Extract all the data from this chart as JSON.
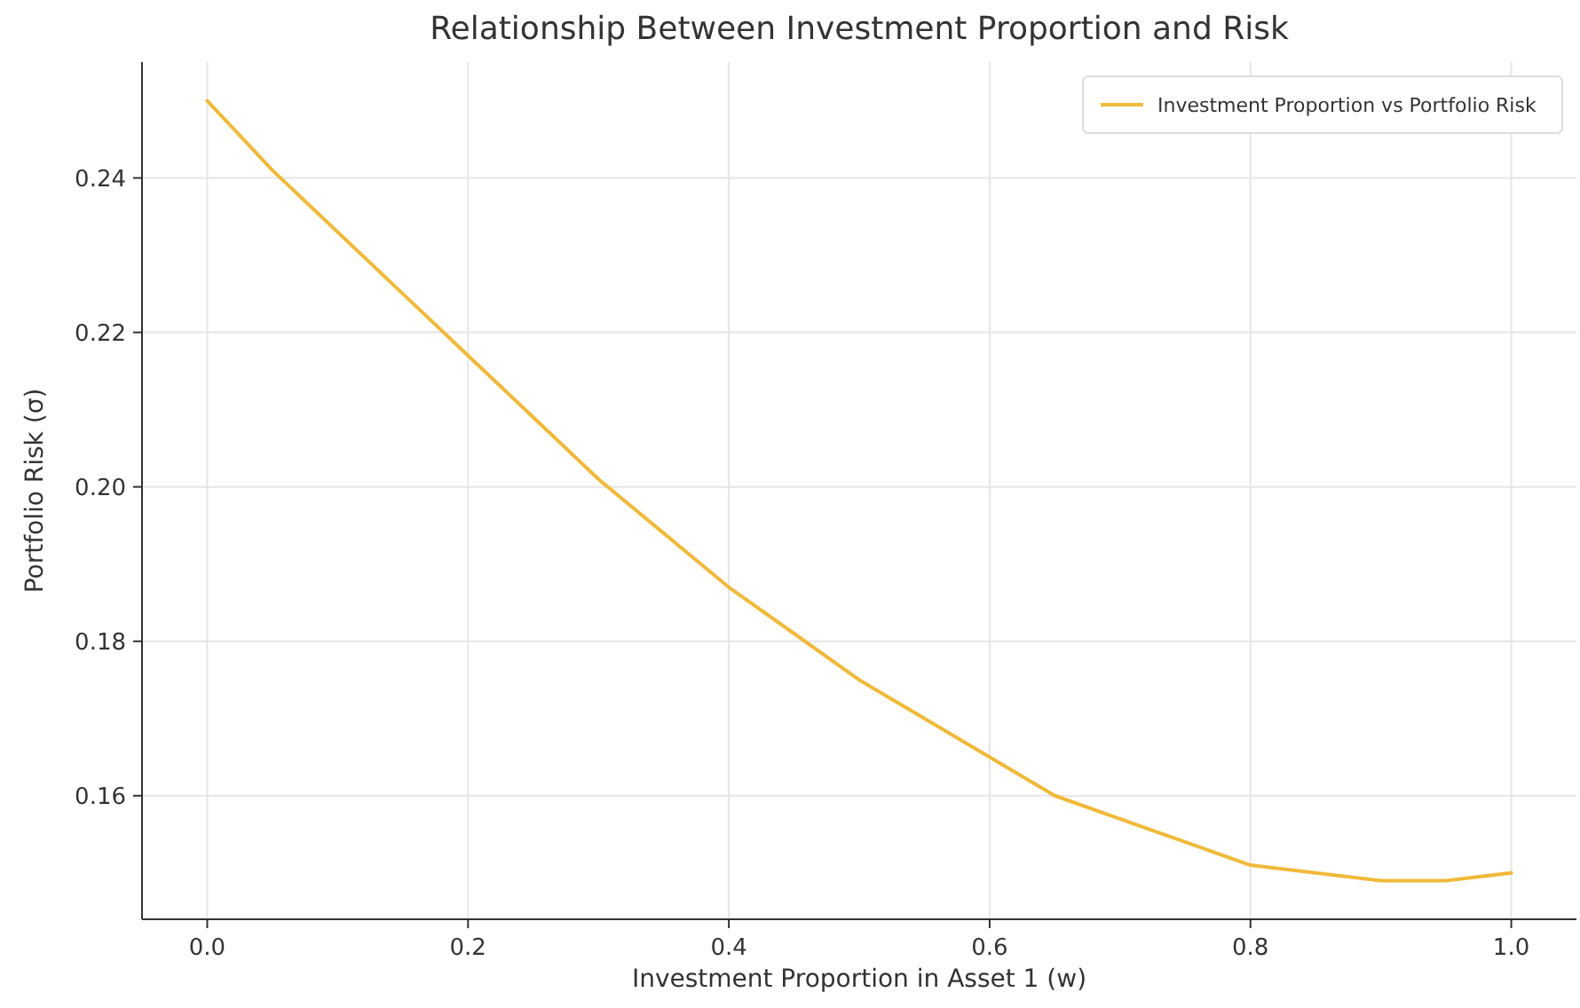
{
  "chart_data": {
    "type": "line",
    "title": "Relationship Between Investment Proportion and Risk",
    "xlabel": "Investment Proportion in Asset 1 (w)",
    "ylabel": "Portfolio Risk (σ)",
    "x": [
      0,
      0.05,
      0.1,
      0.15,
      0.2,
      0.25,
      0.3,
      0.35,
      0.4,
      0.45,
      0.5,
      0.55,
      0.6,
      0.65,
      0.7,
      0.75,
      0.8,
      0.85,
      0.9,
      0.95,
      1
    ],
    "series": [
      {
        "name": "Investment Proportion vs Portfolio Risk",
        "color": "#f0b93a",
        "values": [
          0.25,
          0.241,
          0.233,
          0.225,
          0.217,
          0.209,
          0.201,
          0.194,
          0.187,
          0.181,
          0.175,
          0.17,
          0.165,
          0.16,
          0.157,
          0.154,
          0.151,
          0.15,
          0.149,
          0.149,
          0.15
        ]
      }
    ],
    "xlim": [
      -0.05,
      1.05
    ],
    "ylim": [
      0.144,
      0.255
    ],
    "xticks": [
      {
        "value": 0,
        "label": "0.0"
      },
      {
        "value": 0.2,
        "label": "0.2"
      },
      {
        "value": 0.4,
        "label": "0.4"
      },
      {
        "value": 0.6,
        "label": "0.6"
      },
      {
        "value": 0.8,
        "label": "0.8"
      },
      {
        "value": 1,
        "label": "1.0"
      }
    ],
    "yticks": [
      {
        "value": 0.16,
        "label": "0.16"
      },
      {
        "value": 0.18,
        "label": "0.18"
      },
      {
        "value": 0.2,
        "label": "0.20"
      },
      {
        "value": 0.22,
        "label": "0.22"
      },
      {
        "value": 0.24,
        "label": "0.24"
      }
    ],
    "grid": true,
    "legend": "top right",
    "marker": "none",
    "line_style": "solid"
  }
}
